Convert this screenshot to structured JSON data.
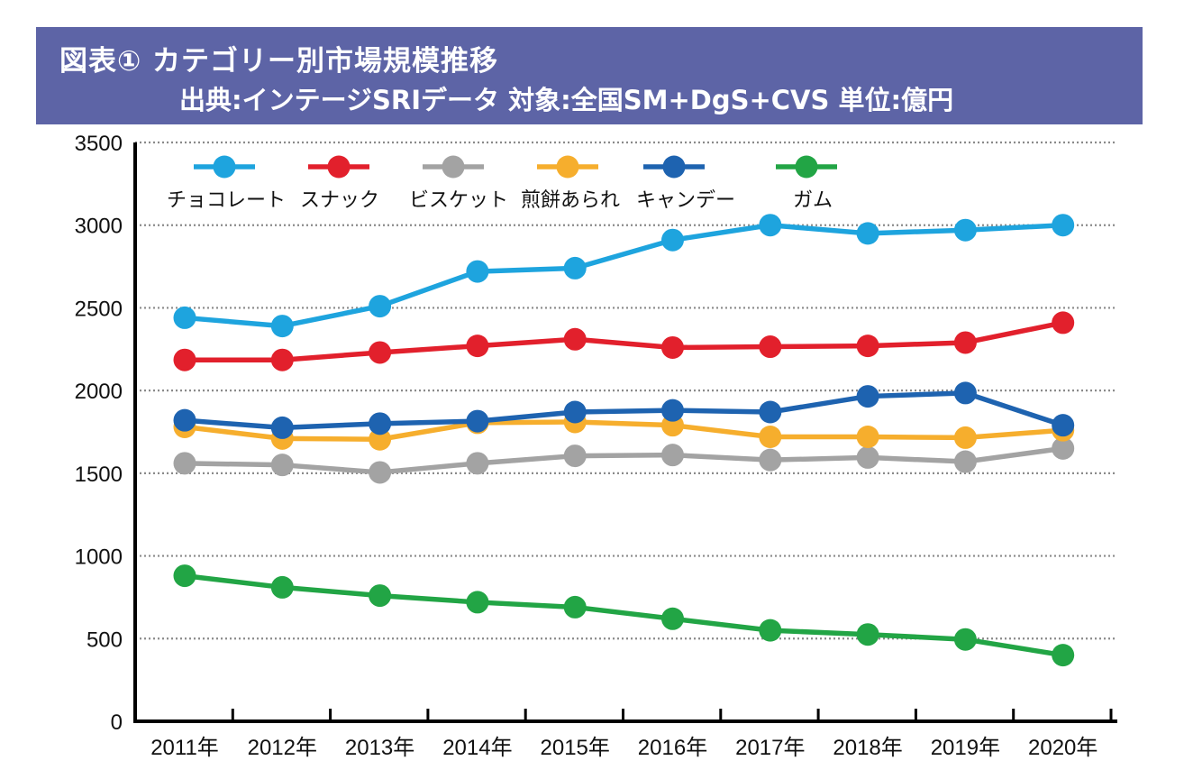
{
  "header": {
    "title": "図表① カテゴリー別市場規模推移",
    "subtitle": "出典:インテージSRIデータ 対象:全国SM+DgS+CVS 単位:億円"
  },
  "chart_data": {
    "type": "line",
    "categories": [
      "2011年",
      "2012年",
      "2013年",
      "2014年",
      "2015年",
      "2016年",
      "2017年",
      "2018年",
      "2019年",
      "2020年"
    ],
    "ylim": [
      0,
      3500
    ],
    "y_ticks": [
      "0",
      "500",
      "1000",
      "1500",
      "2000",
      "2500",
      "3000",
      "3500"
    ],
    "grid": true,
    "legend_position": "top-left",
    "series": [
      {
        "name": "チョコレート",
        "color": "#1ea4de",
        "values": [
          2440,
          2390,
          2510,
          2720,
          2740,
          2910,
          3000,
          2950,
          2970,
          3000
        ]
      },
      {
        "name": "スナック",
        "color": "#e2202c",
        "values": [
          2185,
          2185,
          2230,
          2270,
          2310,
          2260,
          2265,
          2270,
          2290,
          2410
        ]
      },
      {
        "name": "ビスケット",
        "color": "#a3a3a3",
        "values": [
          1560,
          1550,
          1505,
          1560,
          1605,
          1610,
          1580,
          1595,
          1570,
          1650
        ]
      },
      {
        "name": "煎餅あられ",
        "color": "#f6ae2d",
        "values": [
          1780,
          1710,
          1705,
          1805,
          1810,
          1790,
          1720,
          1720,
          1715,
          1760
        ]
      },
      {
        "name": "キャンデー",
        "color": "#1e63b0",
        "values": [
          1820,
          1775,
          1800,
          1815,
          1870,
          1880,
          1870,
          1965,
          1985,
          1790
        ]
      },
      {
        "name": "ガム",
        "color": "#22a545",
        "values": [
          880,
          810,
          760,
          720,
          690,
          620,
          550,
          525,
          495,
          400
        ]
      }
    ]
  }
}
